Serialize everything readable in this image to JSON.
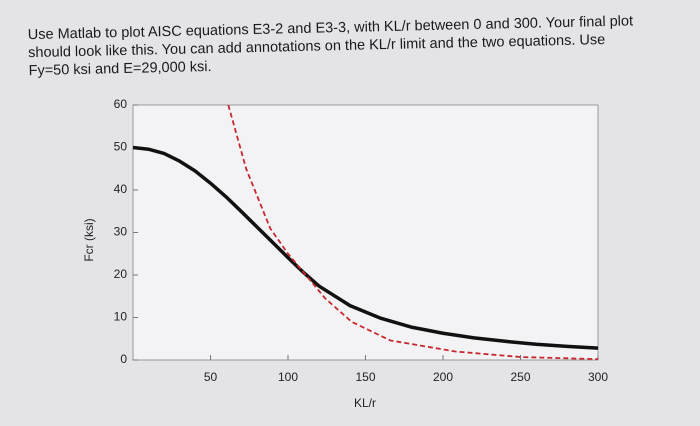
{
  "prompt_lines": [
    "Use Matlab to plot AISC equations E3-2 and E3-3, with KL/r between 0 and 300. Your final plot",
    "should look like this. You can add annotations on the KL/r limit and the two equations. Use",
    "Fy=50 ksi and E=29,000 ksi."
  ],
  "chart_data": {
    "type": "line",
    "xlabel": "KL/r",
    "ylabel": "Fcr (ksi)",
    "xlim": [
      0,
      300
    ],
    "xticks": [
      50,
      100,
      150,
      200,
      250,
      300
    ],
    "ylim": [
      0,
      60
    ],
    "yticks": [
      0,
      10,
      20,
      30,
      40,
      50,
      60
    ],
    "series": [
      {
        "color": "#111111",
        "dashed": false,
        "x": [
          0,
          10,
          20,
          30,
          40,
          50,
          60,
          70,
          80,
          90,
          100,
          110,
          120,
          140,
          160,
          180,
          200,
          220,
          240,
          260,
          280,
          300
        ],
        "values": [
          50,
          49.6,
          48.6,
          46.8,
          44.5,
          41.6,
          38.4,
          34.9,
          31.3,
          27.7,
          24.1,
          20.6,
          17.4,
          12.8,
          9.8,
          7.7,
          6.3,
          5.2,
          4.4,
          3.7,
          3.2,
          2.8
        ]
      },
      {
        "color": "#c8282e",
        "dashed": true,
        "x": [
          61.5,
          73,
          88.5,
          100,
          124,
          141,
          166,
          208,
          250,
          300
        ],
        "values": [
          60,
          45,
          31,
          25,
          14.5,
          9,
          4.6,
          2,
          0.7,
          0.2
        ]
      }
    ]
  }
}
